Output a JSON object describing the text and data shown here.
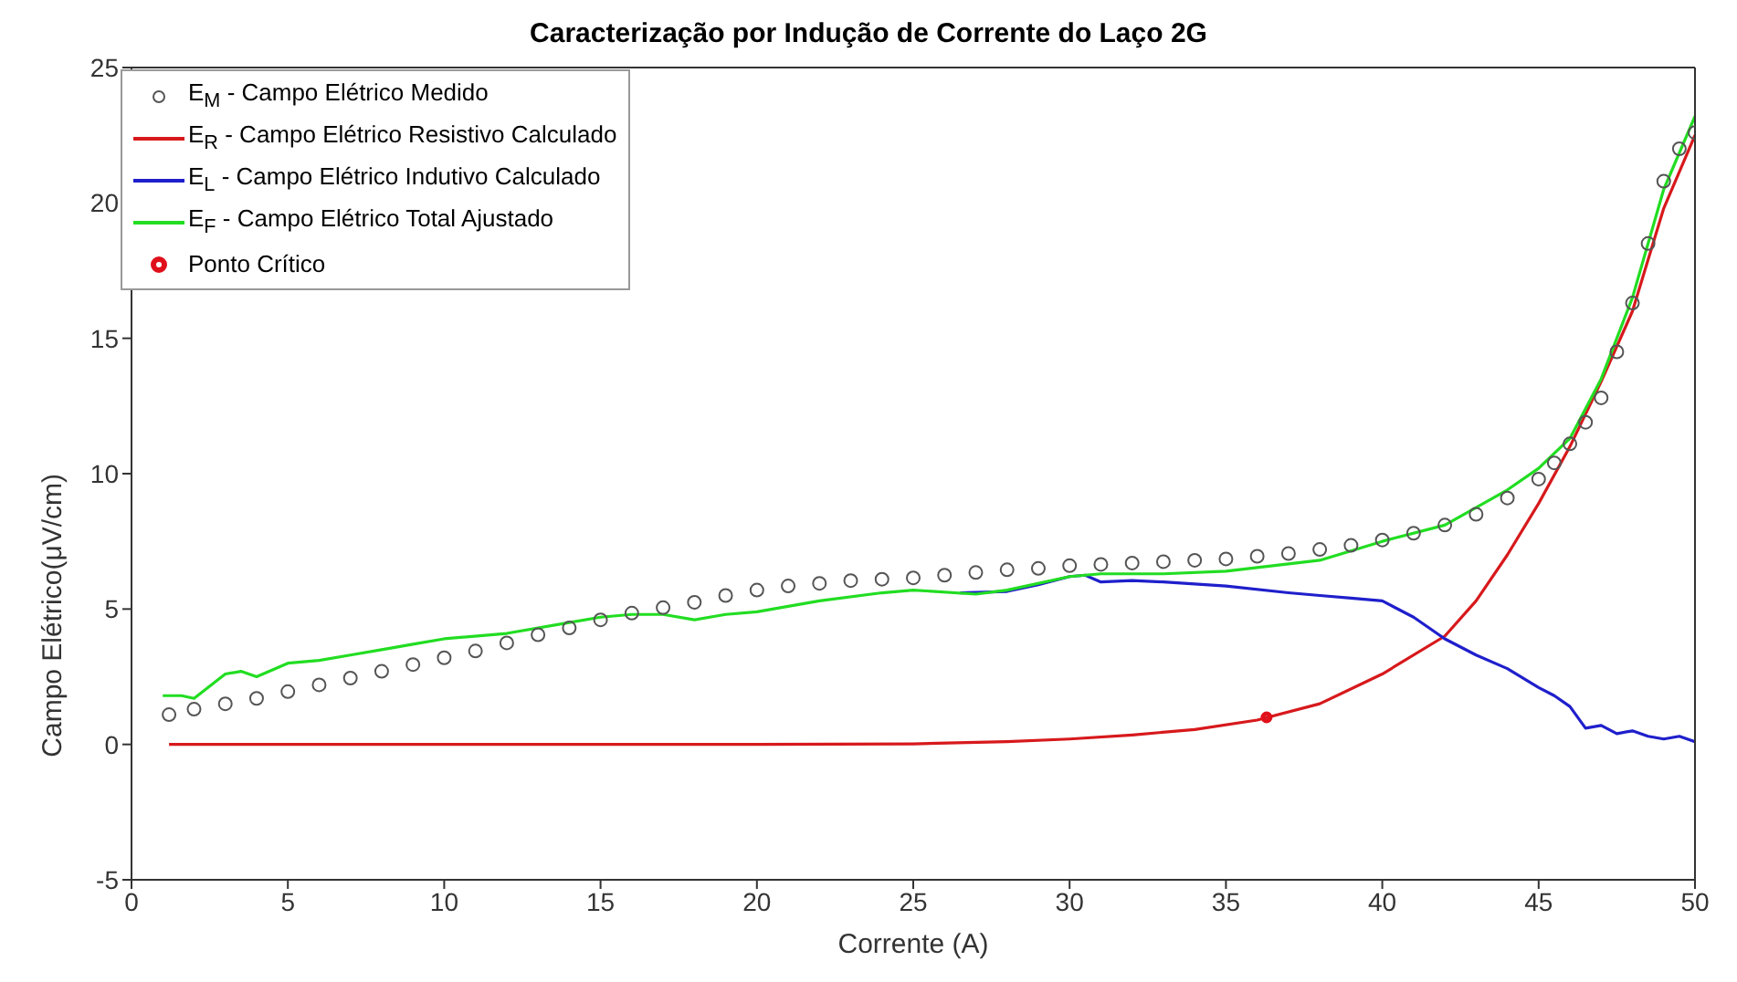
{
  "chart_data": {
    "type": "line",
    "title": "Caracterização por Indução de Corrente do Laço 2G",
    "xlabel": "Corrente (A)",
    "ylabel": "Campo Elétrico(μV/cm)",
    "xlim": [
      0,
      50
    ],
    "xticks": [
      0,
      5,
      10,
      15,
      20,
      25,
      30,
      35,
      40,
      45,
      50
    ],
    "ylim": [
      -5,
      25
    ],
    "yticks": [
      -5,
      0,
      5,
      10,
      15,
      20,
      25
    ],
    "grid": false,
    "legend": "top left",
    "series": [
      {
        "name": "E$_{M}$ - Campo Elétrico Medido",
        "type": "scatter",
        "marker": "circle",
        "color": "#555555",
        "x": [
          1.2,
          2,
          3,
          4,
          5,
          6,
          7,
          8,
          9,
          10,
          11,
          12,
          13,
          14,
          15,
          16,
          17,
          18,
          19,
          20,
          21,
          22,
          23,
          24,
          25,
          26,
          27,
          28,
          29,
          30,
          31,
          32,
          33,
          34,
          35,
          36,
          37,
          38,
          39,
          40,
          41,
          42,
          43,
          44,
          45,
          45.5,
          46,
          46.5,
          47,
          47.5,
          48,
          48.5,
          49,
          49.5,
          50
        ],
        "values": [
          1.1,
          1.3,
          1.5,
          1.7,
          1.95,
          2.2,
          2.45,
          2.7,
          2.95,
          3.2,
          3.45,
          3.75,
          4.05,
          4.3,
          4.6,
          4.85,
          5.05,
          5.25,
          5.5,
          5.7,
          5.85,
          5.95,
          6.05,
          6.1,
          6.15,
          6.25,
          6.35,
          6.45,
          6.5,
          6.6,
          6.65,
          6.7,
          6.75,
          6.8,
          6.85,
          6.95,
          7.05,
          7.2,
          7.35,
          7.55,
          7.8,
          8.1,
          8.5,
          9.1,
          9.8,
          10.4,
          11.1,
          11.9,
          12.8,
          14.5,
          16.3,
          18.5,
          20.8,
          22,
          22.6
        ]
      },
      {
        "name": "E$_{R}$ - Campo Elétrico Resistivo Calculado",
        "marker": "none",
        "color": "#d7191c",
        "x": [
          1.2,
          10,
          20,
          25,
          28,
          30,
          32,
          34,
          36,
          38,
          40,
          42,
          43,
          44,
          45,
          46,
          47,
          48,
          49,
          50
        ],
        "values": [
          0,
          0,
          0,
          0.02,
          0.1,
          0.2,
          0.35,
          0.55,
          0.9,
          1.5,
          2.6,
          4.0,
          5.3,
          7.0,
          8.9,
          11,
          13.4,
          16,
          19.8,
          22.5
        ]
      },
      {
        "name": "E$_{L}$ - Campo Elétrico Indutivo  Calculado",
        "marker": "none",
        "color": "#1f1fcc",
        "x": [
          26.5,
          28,
          29,
          30,
          30.5,
          31,
          32,
          33,
          35,
          37,
          38,
          39,
          40,
          41,
          42,
          43,
          44,
          45,
          45.5,
          46,
          46.5,
          47,
          47.5,
          48,
          48.5,
          49,
          49.5,
          50
        ],
        "values": [
          5.6,
          5.65,
          5.9,
          6.2,
          6.25,
          6.0,
          6.05,
          6.0,
          5.85,
          5.6,
          5.5,
          5.4,
          5.3,
          4.7,
          3.9,
          3.3,
          2.8,
          2.1,
          1.8,
          1.4,
          0.6,
          0.7,
          0.4,
          0.5,
          0.3,
          0.2,
          0.3,
          0.1
        ]
      },
      {
        "name": "E$_{F}$ - Campo Elétrico Total Ajustado",
        "marker": "none",
        "color": "#22dd22",
        "x": [
          1,
          1.6,
          2,
          3,
          3.5,
          4,
          5,
          6,
          7,
          8,
          9,
          10,
          12,
          14,
          15,
          16,
          17,
          18,
          19,
          20,
          22,
          24,
          25,
          27,
          28,
          30,
          31,
          33,
          35,
          38,
          40,
          42,
          44,
          45,
          46,
          47,
          48,
          49,
          50
        ],
        "values": [
          1.8,
          1.8,
          1.7,
          2.6,
          2.7,
          2.5,
          3.0,
          3.1,
          3.3,
          3.5,
          3.7,
          3.9,
          4.1,
          4.5,
          4.7,
          4.8,
          4.8,
          4.6,
          4.8,
          4.9,
          5.3,
          5.6,
          5.7,
          5.55,
          5.7,
          6.2,
          6.3,
          6.3,
          6.4,
          6.8,
          7.5,
          8.1,
          9.4,
          10.2,
          11.3,
          13.5,
          16.5,
          20.5,
          23.2
        ]
      },
      {
        "name": "Ponto Crítico",
        "type": "scatter",
        "marker": "circle",
        "color": "#e0101a",
        "x": [
          36.3
        ],
        "values": [
          1.0
        ]
      }
    ]
  }
}
